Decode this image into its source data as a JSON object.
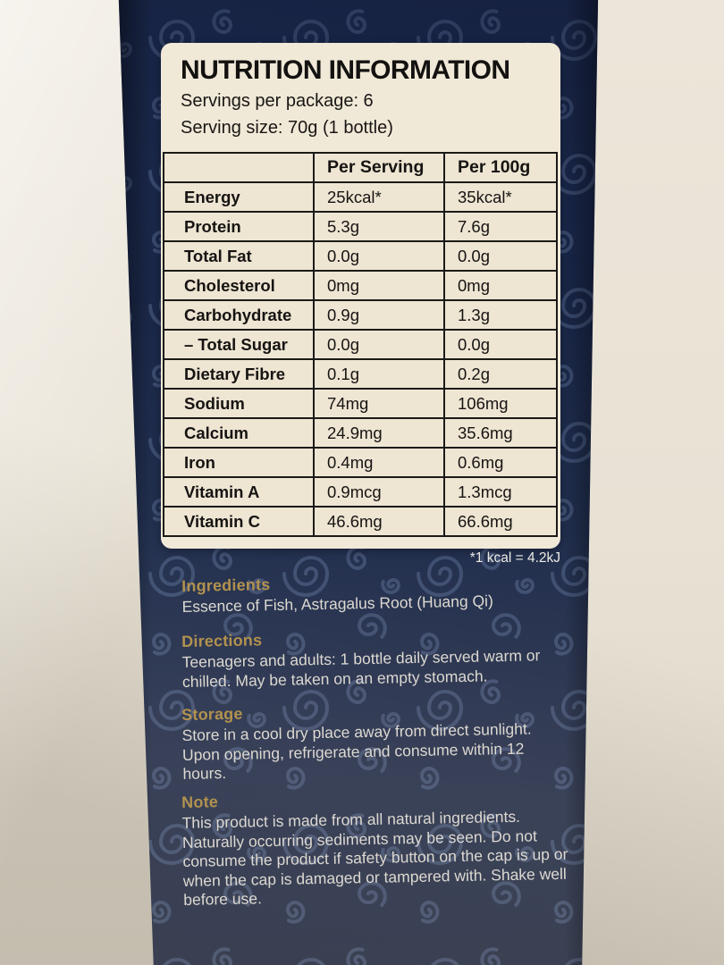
{
  "label": {
    "title": "NUTRITION INFORMATION",
    "servings_line": "Servings per package: 6",
    "serving_size_line": "Serving size: 70g (1 bottle)"
  },
  "table": {
    "columns": [
      "",
      "Per Serving",
      "Per 100g"
    ],
    "rows": [
      [
        "Energy",
        "25kcal*",
        "35kcal*"
      ],
      [
        "Protein",
        "5.3g",
        "7.6g"
      ],
      [
        "Total Fat",
        "0.0g",
        "0.0g"
      ],
      [
        "Cholesterol",
        "0mg",
        "0mg"
      ],
      [
        "Carbohydrate",
        "0.9g",
        "1.3g"
      ],
      [
        "– Total Sugar",
        "0.0g",
        "0.0g"
      ],
      [
        "Dietary Fibre",
        "0.1g",
        "0.2g"
      ],
      [
        "Sodium",
        "74mg",
        "106mg"
      ],
      [
        "Calcium",
        "24.9mg",
        "35.6mg"
      ],
      [
        "Iron",
        "0.4mg",
        "0.6mg"
      ],
      [
        "Vitamin A",
        "0.9mcg",
        "1.3mcg"
      ],
      [
        "Vitamin C",
        "46.6mg",
        "66.6mg"
      ]
    ]
  },
  "footnote": "*1 kcal = 4.2kJ",
  "sections": [
    {
      "heading": "Ingredients",
      "body": "Essence of Fish,  Astragalus Root (Huang Qi)"
    },
    {
      "heading": "Directions",
      "body": "Teenagers and adults: 1 bottle daily served warm or chilled. May be taken on an empty stomach."
    },
    {
      "heading": "Storage",
      "body": "Store in a cool dry place away from direct sunlight. Upon opening, refrigerate and consume within 12 hours."
    },
    {
      "heading": "Note",
      "body": "This product is made from all natural ingredients. Naturally occurring sediments may be seen. Do not consume the product if safety button on the cap is up or when the cap is damaged or tampered with. Shake well before use."
    }
  ],
  "colors": {
    "box_navy": "#1b2949",
    "swirl_blue": "#8aa0cc",
    "label_cream": "#f1e9d8",
    "table_cell_cream": "#eee5d3",
    "heading_gold": "#b2924e",
    "body_text_white": "#ddd9d1",
    "wall_beige": "#e8e2d5",
    "grid_black": "#1b1a18"
  }
}
